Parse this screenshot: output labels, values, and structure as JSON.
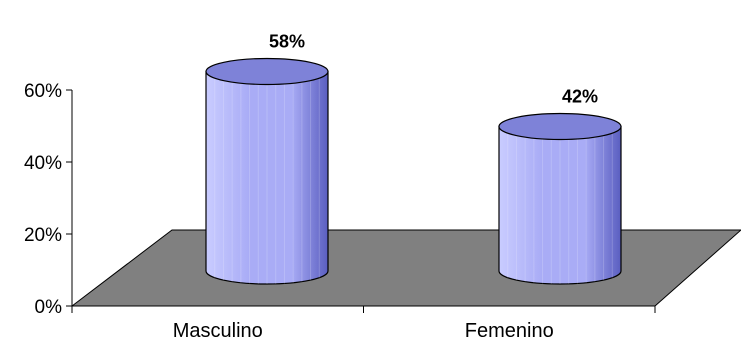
{
  "chart_data": {
    "type": "bar",
    "style": "3d-cylinder",
    "categories": [
      "Masculino",
      "Femenino"
    ],
    "values": [
      58,
      42
    ],
    "data_labels": [
      "58%",
      "42%"
    ],
    "y_ticks": [
      "0%",
      "20%",
      "40%",
      "60%"
    ],
    "ylim": [
      0,
      60
    ],
    "y_unit": "%",
    "grid": false,
    "legend": "none",
    "title": "",
    "xlabel": "",
    "ylabel": "",
    "colors": {
      "bar_light": "#c9ccff",
      "bar_mid": "#a9acf6",
      "bar_dark": "#5a5ec0",
      "bar_top": "#7e82d8",
      "floor": "#808080"
    }
  }
}
